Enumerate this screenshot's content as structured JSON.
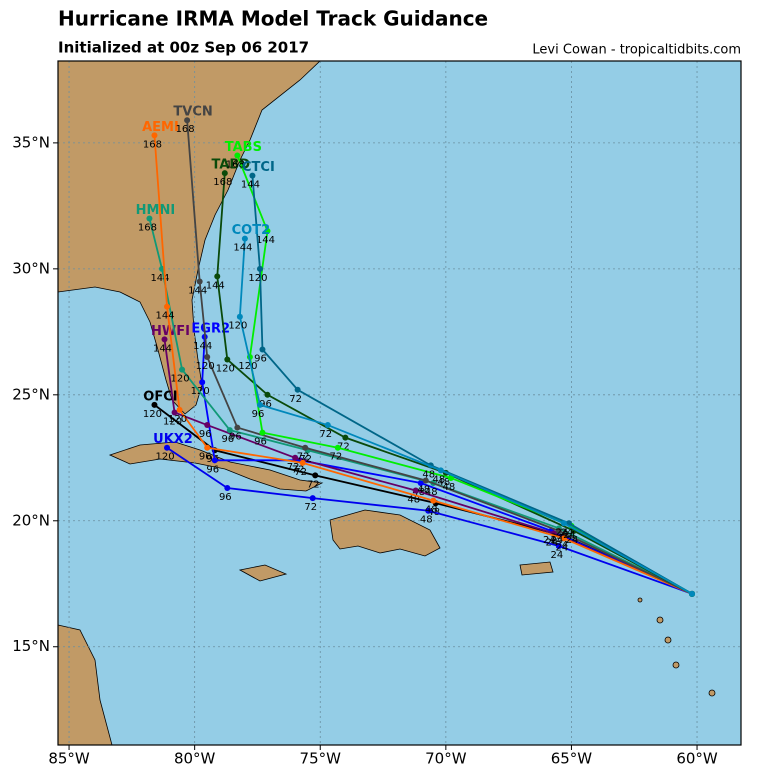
{
  "chart_data": {
    "type": "track-map",
    "title": "Hurricane IRMA Model Track Guidance",
    "subtitle": "Initialized at 00z Sep 06 2017",
    "credit": "Levi Cowan - tropicaltidbits.com",
    "xlim": [
      -85.44,
      -58.25
    ],
    "ylim": [
      11.1,
      38.25
    ],
    "xticks": [
      {
        "value": -85,
        "label": "85°W"
      },
      {
        "value": -80,
        "label": "80°W"
      },
      {
        "value": -75,
        "label": "75°W"
      },
      {
        "value": -70,
        "label": "70°W"
      },
      {
        "value": -65,
        "label": "65°W"
      },
      {
        "value": -60,
        "label": "60°W"
      }
    ],
    "yticks": [
      {
        "value": 15,
        "label": "15°N"
      },
      {
        "value": 20,
        "label": "20°N"
      },
      {
        "value": 25,
        "label": "25°N"
      },
      {
        "value": 30,
        "label": "30°N"
      },
      {
        "value": 35,
        "label": "35°N"
      }
    ],
    "grid": true,
    "series": [
      {
        "name": "OFCI",
        "color": "#000000",
        "x": [
          -60.2,
          -65.3,
          -70.4,
          -75.2,
          -79.2,
          -81.6
        ],
        "y": [
          17.1,
          19.4,
          20.7,
          21.8,
          22.8,
          24.6
        ],
        "hours": [
          null,
          24,
          48,
          72,
          96,
          120
        ]
      },
      {
        "name": "UKX2",
        "color": "#0000ee",
        "x": [
          -60.2,
          -65.5,
          -70.7,
          -75.3,
          -78.7,
          -81.1
        ],
        "y": [
          17.1,
          19.0,
          20.4,
          20.9,
          21.3,
          22.9
        ],
        "hours": [
          null,
          24,
          48,
          72,
          96,
          120
        ]
      },
      {
        "name": "EGR2",
        "color": "#0000ff",
        "x": [
          -60.2,
          -65.8,
          -71.0,
          -75.8,
          -79.2,
          -79.7,
          -79.6
        ],
        "y": [
          17.1,
          19.6,
          21.5,
          22.4,
          22.4,
          25.5,
          27.3
        ],
        "hours": [
          null,
          24,
          48,
          72,
          96,
          120,
          144
        ]
      },
      {
        "name": "HWFI",
        "color": "#660066",
        "x": [
          -60.2,
          -65.7,
          -71.2,
          -76.0,
          -79.5,
          -80.8,
          -81.2
        ],
        "y": [
          17.1,
          19.5,
          21.2,
          22.5,
          23.8,
          24.3,
          27.2
        ],
        "hours": [
          null,
          24,
          48,
          72,
          96,
          120,
          144
        ]
      },
      {
        "name": "HMNI",
        "color": "#119977",
        "x": [
          -60.2,
          -65.5,
          -70.5,
          -75.5,
          -78.6,
          -80.5,
          -81.3,
          -81.8
        ],
        "y": [
          17.1,
          19.7,
          21.5,
          22.8,
          23.6,
          26.0,
          30.0,
          32.0
        ],
        "hours": [
          null,
          24,
          48,
          72,
          96,
          120,
          144,
          168
        ]
      },
      {
        "name": "AEMI",
        "color": "#ff6600",
        "x": [
          -60.2,
          -65.3,
          -70.5,
          -75.7,
          -79.5,
          -80.6,
          -81.1,
          -81.6
        ],
        "y": [
          17.1,
          19.3,
          20.8,
          22.3,
          22.9,
          24.4,
          28.5,
          35.3
        ],
        "hours": [
          null,
          24,
          48,
          72,
          96,
          120,
          144,
          168
        ]
      },
      {
        "name": "TVCN",
        "color": "#444444",
        "x": [
          -60.2,
          -65.5,
          -70.8,
          -75.6,
          -78.3,
          -79.5,
          -79.8,
          -80.3
        ],
        "y": [
          17.1,
          19.6,
          21.6,
          22.9,
          23.7,
          26.5,
          29.5,
          35.9
        ],
        "hours": [
          null,
          24,
          48,
          72,
          96,
          120,
          144,
          168
        ]
      },
      {
        "name": "TABD",
        "color": "#0a4a0a",
        "x": [
          -60.2,
          -64.9,
          -70.0,
          -74.0,
          -77.1,
          -78.7,
          -79.1,
          -78.8
        ],
        "y": [
          17.1,
          19.6,
          21.9,
          23.3,
          25.0,
          26.4,
          29.7,
          33.8
        ],
        "hours": [
          null,
          24,
          48,
          72,
          96,
          120,
          144,
          168
        ]
      },
      {
        "name": "TABS",
        "color": "#00ee00",
        "x": [
          -60.2,
          -65.0,
          -69.8,
          -74.3,
          -77.3,
          -77.8,
          -77.1,
          -78.3
        ],
        "y": [
          17.1,
          19.8,
          21.7,
          22.9,
          23.5,
          26.5,
          31.5,
          34.5
        ],
        "hours": [
          null,
          24,
          48,
          72,
          96,
          120,
          144,
          168
        ]
      },
      {
        "name": "CTCI",
        "color": "#006688",
        "x": [
          -60.2,
          -65.1,
          -70.6,
          -75.9,
          -77.3,
          -77.4,
          -77.7
        ],
        "y": [
          17.1,
          19.9,
          22.2,
          25.2,
          26.8,
          30.0,
          33.7
        ],
        "hours": [
          null,
          24,
          48,
          72,
          96,
          120,
          144
        ]
      },
      {
        "name": "COT2",
        "color": "#0088bb",
        "x": [
          -60.2,
          -65.3,
          -70.2,
          -74.7,
          -77.4,
          -78.2,
          -78.0
        ],
        "y": [
          17.1,
          19.9,
          22.0,
          23.8,
          24.6,
          28.1,
          31.2
        ],
        "hours": [
          null,
          24,
          48,
          72,
          96,
          120,
          144
        ]
      }
    ]
  }
}
